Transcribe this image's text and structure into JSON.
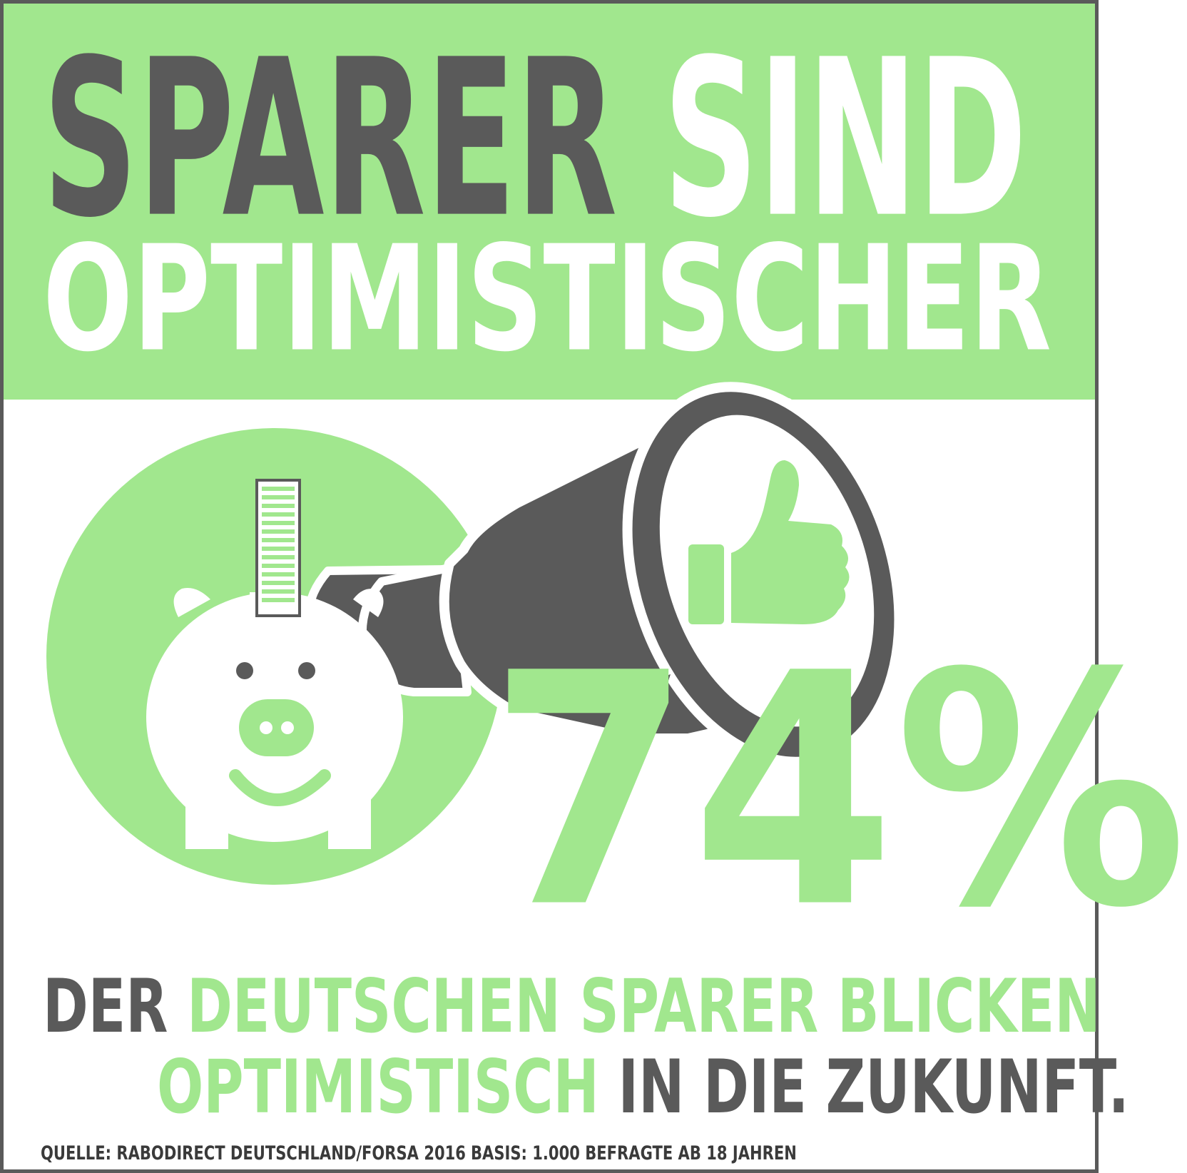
{
  "title": {
    "line1_word1": "SPARER",
    "line1_word2": "SIND",
    "line2": "OPTIMISTISCHER"
  },
  "stat": {
    "value": "74%"
  },
  "subtitle": {
    "line1_dark": "DER",
    "line1_green": "DEUTSCHEN SPARER BLICKEN",
    "line2_green": "OPTIMISTISCH",
    "line2_dark": "IN DIE ZUKUNFT."
  },
  "footer": {
    "source": "QUELLE: RABODIRECT DEUTSCHLAND/FORSA 2016",
    "basis": "BASIS: 1.000 BEFRAGTE AB 18 JAHREN"
  },
  "icons": [
    "piggy-bank-icon",
    "coin-icon",
    "megaphone-icon",
    "thumbs-up-icon"
  ],
  "colors": {
    "green": "#a1e78e",
    "dark_gray": "#5a5a5a",
    "white": "#ffffff"
  }
}
